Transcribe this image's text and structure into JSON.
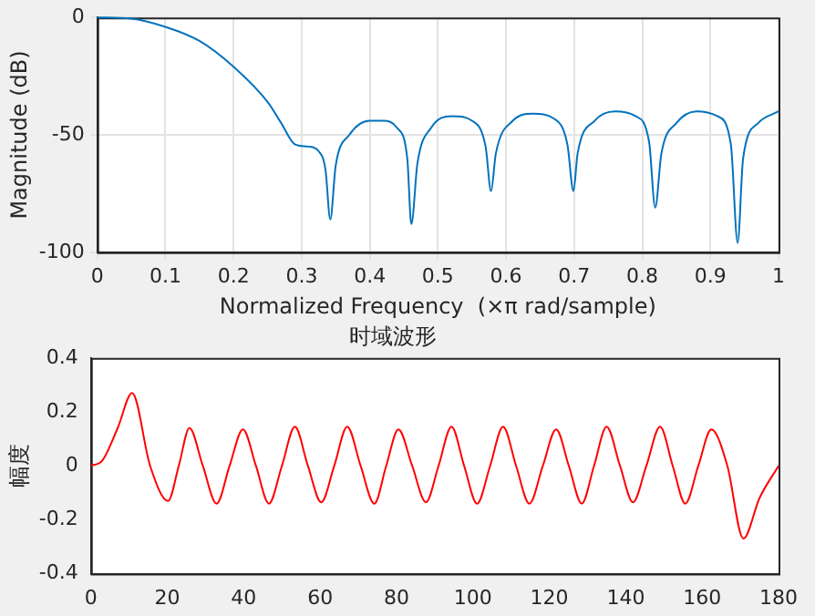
{
  "chart_data": [
    {
      "type": "line",
      "xlabel": "Normalized Frequency  (×π rad/sample)",
      "ylabel": "Magnitude (dB)",
      "xlim": [
        0,
        1
      ],
      "ylim": [
        -100,
        0
      ],
      "xticks": [
        0,
        0.1,
        0.2,
        0.3,
        0.4,
        0.5,
        0.6,
        0.7,
        0.8,
        0.9,
        1
      ],
      "yticks": [
        -100,
        -50,
        0
      ],
      "grid": true,
      "legend": false,
      "marker": "none",
      "line_style": "solid",
      "series": [
        {
          "color": "#0072bd",
          "x": [
            0,
            0.05,
            0.1,
            0.15,
            0.2,
            0.25,
            0.27,
            0.29,
            0.31,
            0.325,
            0.335,
            0.342,
            0.35,
            0.37,
            0.4,
            0.42,
            0.44,
            0.455,
            0.461,
            0.47,
            0.49,
            0.52,
            0.55,
            0.57,
            0.578,
            0.585,
            0.61,
            0.64,
            0.67,
            0.69,
            0.699,
            0.705,
            0.73,
            0.76,
            0.79,
            0.81,
            0.819,
            0.828,
            0.85,
            0.88,
            0.91,
            0.93,
            0.94,
            0.948,
            0.97,
            1
          ],
          "values": [
            0,
            -0.5,
            -4,
            -10,
            -21,
            -36,
            -45,
            -54,
            -55,
            -57,
            -65,
            -86,
            -63,
            -50,
            -44,
            -44,
            -47,
            -60,
            -88,
            -62,
            -47,
            -42,
            -44,
            -55,
            -74,
            -58,
            -44,
            -41,
            -43,
            -54,
            -74,
            -58,
            -44,
            -40,
            -42,
            -53,
            -81,
            -58,
            -45,
            -40,
            -42,
            -54,
            -96,
            -60,
            -45,
            -40
          ]
        }
      ]
    },
    {
      "type": "line",
      "title": "时域波形",
      "ylabel": "幅度",
      "xlim": [
        0,
        180
      ],
      "ylim": [
        -0.4,
        0.4
      ],
      "xticks": [
        0,
        20,
        40,
        60,
        80,
        100,
        120,
        140,
        160,
        180
      ],
      "yticks": [
        -0.4,
        -0.2,
        0,
        0.2,
        0.4
      ],
      "grid": false,
      "legend": false,
      "marker": "none",
      "line_style": "solid",
      "series": [
        {
          "color": "#ff0000",
          "x": [
            0,
            3,
            7,
            10.8,
            15.5,
            20.2,
            23,
            25.8,
            29.3,
            32.9,
            36.3,
            39.8,
            43.2,
            46.6,
            50,
            53.4,
            56.8,
            60.3,
            63.7,
            67.1,
            70.6,
            74.2,
            77.3,
            80.5,
            84.1,
            87.7,
            91,
            94.4,
            97.7,
            101.1,
            104.5,
            107.9,
            111.3,
            114.8,
            118.3,
            121.8,
            125.1,
            128.5,
            131.7,
            135,
            138.5,
            141.9,
            145.4,
            149,
            152.3,
            155.6,
            159,
            162.4,
            166.6,
            170.8,
            175,
            180
          ],
          "values": [
            0,
            0.02,
            0.14,
            0.27,
            0,
            -0.13,
            0,
            0.14,
            0,
            -0.14,
            0,
            0.135,
            0,
            -0.14,
            0,
            0.145,
            0,
            -0.135,
            0,
            0.145,
            0,
            -0.14,
            0,
            0.135,
            0,
            -0.135,
            0,
            0.145,
            0,
            -0.14,
            0,
            0.145,
            0,
            -0.14,
            0,
            0.135,
            0,
            -0.14,
            0,
            0.145,
            0,
            -0.135,
            0,
            0.145,
            0,
            -0.14,
            0,
            0.135,
            0,
            -0.27,
            -0.12,
            0
          ]
        }
      ]
    }
  ]
}
